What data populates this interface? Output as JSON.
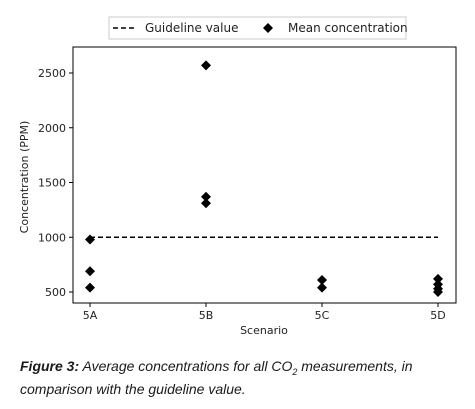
{
  "chart_data": {
    "type": "scatter",
    "xlabel": "Scenario",
    "ylabel": "Concentration (PPM)",
    "categories": [
      "5A",
      "5B",
      "5C",
      "5D"
    ],
    "yticks": [
      500,
      1000,
      1500,
      2000,
      2500
    ],
    "ylim": [
      400,
      2650
    ],
    "grid": false,
    "legend_position": "top-center",
    "series": [
      {
        "name": "Mean concentration",
        "marker": "diamond",
        "color": "#000000",
        "points": [
          {
            "x": "5A",
            "y": 980
          },
          {
            "x": "5A",
            "y": 690
          },
          {
            "x": "5A",
            "y": 540
          },
          {
            "x": "5B",
            "y": 2570
          },
          {
            "x": "5B",
            "y": 1370
          },
          {
            "x": "5B",
            "y": 1310
          },
          {
            "x": "5C",
            "y": 610
          },
          {
            "x": "5C",
            "y": 540
          },
          {
            "x": "5D",
            "y": 620
          },
          {
            "x": "5D",
            "y": 570
          },
          {
            "x": "5D",
            "y": 530
          },
          {
            "x": "5D",
            "y": 500
          }
        ]
      }
    ],
    "reference_lines": [
      {
        "name": "Guideline value",
        "y": 1000,
        "style": "dashed",
        "color": "#000000",
        "from": "5A",
        "to": "5D"
      }
    ]
  },
  "caption": {
    "lead": "Figure 3:",
    "text_before_sub": " Average concentrations for all CO",
    "sub": "2",
    "text_after_sub": " measurements, in comparison with the guideline value."
  }
}
